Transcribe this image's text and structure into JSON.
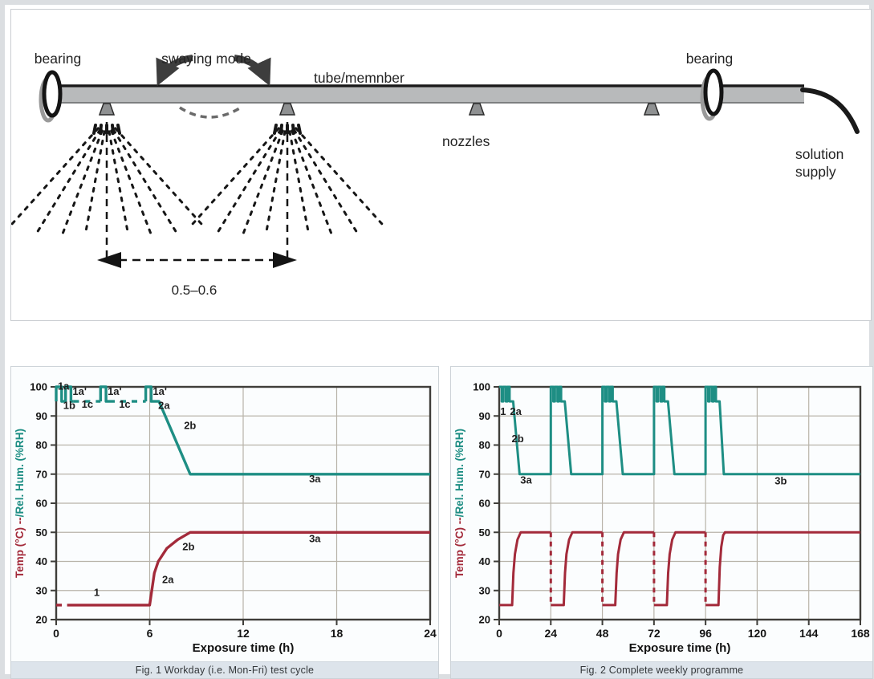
{
  "diagram": {
    "labels": {
      "bearing_left": "bearing",
      "swaying_mode": "swaying mode",
      "tube": "tube/memnber",
      "bearing_right": "bearing",
      "nozzles": "nozzles",
      "solution_line1": "solution",
      "solution_line2": "supply",
      "span": "0.5–0.6"
    }
  },
  "chart_data": [
    {
      "id": "fig1",
      "type": "line",
      "caption": "Fig. 1  Workday (i.e. Mon-Fri) test cycle",
      "xlabel": "Exposure time (h)",
      "ylabel": {
        "temp": "Temp (°C) --",
        "rh": "/Rel. Hum. (%RH)"
      },
      "xlim": [
        0,
        24
      ],
      "ylim": [
        20,
        100
      ],
      "xticks": [
        0,
        6,
        12,
        18,
        24
      ],
      "yticks": [
        20,
        30,
        40,
        50,
        60,
        70,
        80,
        90,
        100
      ],
      "grid": true,
      "colors": {
        "temp": "#a32a3a",
        "rh": "#1e8e84",
        "grid": "#b8b3a9",
        "frame": "#3f3e3a",
        "tick": "#141414"
      },
      "series": [
        {
          "name": "Rel. Hum. (%RH)",
          "color_key": "rh",
          "segments": [
            {
              "dash": false,
              "points": [
                [
                  0,
                  95
                ],
                [
                  0,
                  100
                ],
                [
                  0.35,
                  100
                ],
                [
                  0.35,
                  95
                ],
                [
                  0.6,
                  95
                ],
                [
                  0.6,
                  100
                ],
                [
                  0.95,
                  100
                ],
                [
                  0.95,
                  95
                ],
                [
                  1.1,
                  95
                ]
              ]
            },
            {
              "dash": true,
              "points": [
                [
                  1.1,
                  95
                ],
                [
                  2.85,
                  95
                ]
              ]
            },
            {
              "dash": false,
              "points": [
                [
                  2.85,
                  95
                ],
                [
                  2.85,
                  100
                ],
                [
                  3.2,
                  100
                ],
                [
                  3.2,
                  95
                ],
                [
                  3.4,
                  95
                ]
              ]
            },
            {
              "dash": true,
              "points": [
                [
                  3.4,
                  95
                ],
                [
                  5.75,
                  95
                ]
              ]
            },
            {
              "dash": false,
              "points": [
                [
                  5.75,
                  95
                ],
                [
                  5.75,
                  100
                ],
                [
                  6.1,
                  100
                ],
                [
                  6.1,
                  95
                ],
                [
                  6.6,
                  95
                ],
                [
                  8.6,
                  70
                ],
                [
                  24,
                  70
                ]
              ]
            }
          ]
        },
        {
          "name": "Temp (°C)",
          "color_key": "temp",
          "segments": [
            {
              "dash": true,
              "points": [
                [
                  0,
                  25
                ],
                [
                  0.7,
                  25
                ]
              ]
            },
            {
              "dash": false,
              "points": [
                [
                  0.7,
                  25
                ],
                [
                  6,
                  25
                ],
                [
                  6.3,
                  36
                ],
                [
                  6.55,
                  40
                ],
                [
                  7.1,
                  44.5
                ],
                [
                  7.8,
                  47.5
                ],
                [
                  8.6,
                  50
                ],
                [
                  24,
                  50
                ]
              ]
            }
          ]
        }
      ],
      "annotations": [
        {
          "text": "1a",
          "x": 0.1,
          "y": 99,
          "anchor": "start"
        },
        {
          "text": "1a'",
          "x": 1.05,
          "y": 97.3,
          "anchor": "start"
        },
        {
          "text": "1b",
          "x": 0.45,
          "y": 92.4,
          "anchor": "start"
        },
        {
          "text": "1c",
          "x": 2.0,
          "y": 92.8,
          "anchor": "middle"
        },
        {
          "text": "1a'",
          "x": 3.3,
          "y": 97.3,
          "anchor": "start"
        },
        {
          "text": "1c",
          "x": 4.4,
          "y": 92.8,
          "anchor": "middle"
        },
        {
          "text": "1a'",
          "x": 6.2,
          "y": 97.3,
          "anchor": "start"
        },
        {
          "text": "2a",
          "x": 6.55,
          "y": 92.4,
          "anchor": "start"
        },
        {
          "text": "2b",
          "x": 8.2,
          "y": 85.5,
          "anchor": "start"
        },
        {
          "text": "3a",
          "x": 16.6,
          "y": 67.2,
          "anchor": "middle"
        },
        {
          "text": "1",
          "x": 2.6,
          "y": 28.2,
          "anchor": "middle"
        },
        {
          "text": "2a",
          "x": 6.8,
          "y": 32.5,
          "anchor": "start"
        },
        {
          "text": "2b",
          "x": 8.1,
          "y": 43.8,
          "anchor": "start"
        },
        {
          "text": "3a",
          "x": 16.6,
          "y": 46.6,
          "anchor": "middle"
        }
      ]
    },
    {
      "id": "fig2",
      "type": "line",
      "caption": "Fig. 2  Complete weekly programme",
      "xlabel": "Exposure time (h)",
      "ylabel": {
        "temp": "Temp (°C) --",
        "rh": "/Rel. Hum. (%RH)"
      },
      "xlim": [
        0,
        168
      ],
      "ylim": [
        20,
        100
      ],
      "xticks": [
        0,
        24,
        48,
        72,
        96,
        120,
        144,
        168
      ],
      "yticks": [
        20,
        30,
        40,
        50,
        60,
        70,
        80,
        90,
        100
      ],
      "grid": true,
      "colors": {
        "temp": "#a32a3a",
        "rh": "#1e8e84",
        "grid": "#b8b3a9",
        "frame": "#3f3e3a",
        "tick": "#141414"
      },
      "series": [
        {
          "name": "Rel. Hum. (%RH)",
          "color_key": "rh",
          "segments": [
            {
              "dash": false,
              "points": [
                [
                  0,
                  100
                ],
                [
                  1.2,
                  100
                ],
                [
                  1.2,
                  95
                ],
                [
                  1.9,
                  95
                ],
                [
                  1.9,
                  100
                ],
                [
                  3.1,
                  100
                ],
                [
                  3.1,
                  95
                ],
                [
                  3.8,
                  95
                ],
                [
                  3.8,
                  100
                ],
                [
                  4.8,
                  100
                ],
                [
                  4.8,
                  95
                ],
                [
                  6.5,
                  95
                ],
                [
                  9.5,
                  70
                ],
                [
                  24,
                  70
                ],
                [
                  24,
                  100
                ],
                [
                  25.2,
                  100
                ],
                [
                  25.2,
                  95
                ],
                [
                  25.9,
                  95
                ],
                [
                  25.9,
                  100
                ],
                [
                  27.1,
                  100
                ],
                [
                  27.1,
                  95
                ],
                [
                  27.8,
                  95
                ],
                [
                  27.8,
                  100
                ],
                [
                  28.8,
                  100
                ],
                [
                  28.8,
                  95
                ],
                [
                  30.5,
                  95
                ],
                [
                  33.5,
                  70
                ],
                [
                  48,
                  70
                ],
                [
                  48,
                  100
                ],
                [
                  49.2,
                  100
                ],
                [
                  49.2,
                  95
                ],
                [
                  49.9,
                  95
                ],
                [
                  49.9,
                  100
                ],
                [
                  51.1,
                  100
                ],
                [
                  51.1,
                  95
                ],
                [
                  51.8,
                  95
                ],
                [
                  51.8,
                  100
                ],
                [
                  52.8,
                  100
                ],
                [
                  52.8,
                  95
                ],
                [
                  54.5,
                  95
                ],
                [
                  57.5,
                  70
                ],
                [
                  72,
                  70
                ],
                [
                  72,
                  100
                ],
                [
                  73.2,
                  100
                ],
                [
                  73.2,
                  95
                ],
                [
                  73.9,
                  95
                ],
                [
                  73.9,
                  100
                ],
                [
                  75.1,
                  100
                ],
                [
                  75.1,
                  95
                ],
                [
                  75.8,
                  95
                ],
                [
                  75.8,
                  100
                ],
                [
                  76.8,
                  100
                ],
                [
                  76.8,
                  95
                ],
                [
                  78.5,
                  95
                ],
                [
                  81.5,
                  70
                ],
                [
                  96,
                  70
                ],
                [
                  96,
                  100
                ],
                [
                  97.2,
                  100
                ],
                [
                  97.2,
                  95
                ],
                [
                  97.9,
                  95
                ],
                [
                  97.9,
                  100
                ],
                [
                  99.1,
                  100
                ],
                [
                  99.1,
                  95
                ],
                [
                  99.8,
                  95
                ],
                [
                  99.8,
                  100
                ],
                [
                  100.8,
                  100
                ],
                [
                  100.8,
                  95
                ],
                [
                  102.5,
                  95
                ],
                [
                  104.5,
                  70
                ],
                [
                  168,
                  70
                ]
              ]
            }
          ]
        },
        {
          "name": "Temp (°C)",
          "color_key": "temp",
          "segments": [
            {
              "dash": false,
              "points": [
                [
                  0,
                  25
                ],
                [
                  6,
                  25
                ],
                [
                  6.6,
                  36
                ],
                [
                  7.3,
                  42.5
                ],
                [
                  8.5,
                  47.5
                ],
                [
                  10,
                  50
                ],
                [
                  24,
                  50
                ]
              ]
            },
            {
              "dash": true,
              "points": [
                [
                  24,
                  50
                ],
                [
                  24,
                  25
                ]
              ]
            },
            {
              "dash": false,
              "points": [
                [
                  24,
                  25
                ],
                [
                  30,
                  25
                ],
                [
                  30.6,
                  36
                ],
                [
                  31.3,
                  42.5
                ],
                [
                  32.5,
                  47.5
                ],
                [
                  34,
                  50
                ],
                [
                  48,
                  50
                ]
              ]
            },
            {
              "dash": true,
              "points": [
                [
                  48,
                  50
                ],
                [
                  48,
                  25
                ]
              ]
            },
            {
              "dash": false,
              "points": [
                [
                  48,
                  25
                ],
                [
                  54,
                  25
                ],
                [
                  54.6,
                  36
                ],
                [
                  55.3,
                  42.5
                ],
                [
                  56.5,
                  47.5
                ],
                [
                  58,
                  50
                ],
                [
                  72,
                  50
                ]
              ]
            },
            {
              "dash": true,
              "points": [
                [
                  72,
                  50
                ],
                [
                  72,
                  25
                ]
              ]
            },
            {
              "dash": false,
              "points": [
                [
                  72,
                  25
                ],
                [
                  78,
                  25
                ],
                [
                  78.6,
                  36
                ],
                [
                  79.3,
                  42.5
                ],
                [
                  80.5,
                  47.5
                ],
                [
                  82,
                  50
                ],
                [
                  96,
                  50
                ]
              ]
            },
            {
              "dash": true,
              "points": [
                [
                  96,
                  50
                ],
                [
                  96,
                  25
                ]
              ]
            },
            {
              "dash": false,
              "points": [
                [
                  96,
                  25
                ],
                [
                  102,
                  25
                ],
                [
                  102.6,
                  38
                ],
                [
                  103.3,
                  45
                ],
                [
                  104.2,
                  49
                ],
                [
                  105,
                  50
                ],
                [
                  168,
                  50
                ]
              ]
            }
          ]
        }
      ],
      "annotations": [
        {
          "text": "1",
          "x": 1.8,
          "y": 90.3,
          "anchor": "middle"
        },
        {
          "text": "2a",
          "x": 5.0,
          "y": 90.3,
          "anchor": "start"
        },
        {
          "text": "2b",
          "x": 5.8,
          "y": 81,
          "anchor": "start"
        },
        {
          "text": "3a",
          "x": 12.5,
          "y": 66.8,
          "anchor": "middle"
        },
        {
          "text": "3b",
          "x": 131,
          "y": 66.5,
          "anchor": "middle"
        }
      ]
    }
  ]
}
